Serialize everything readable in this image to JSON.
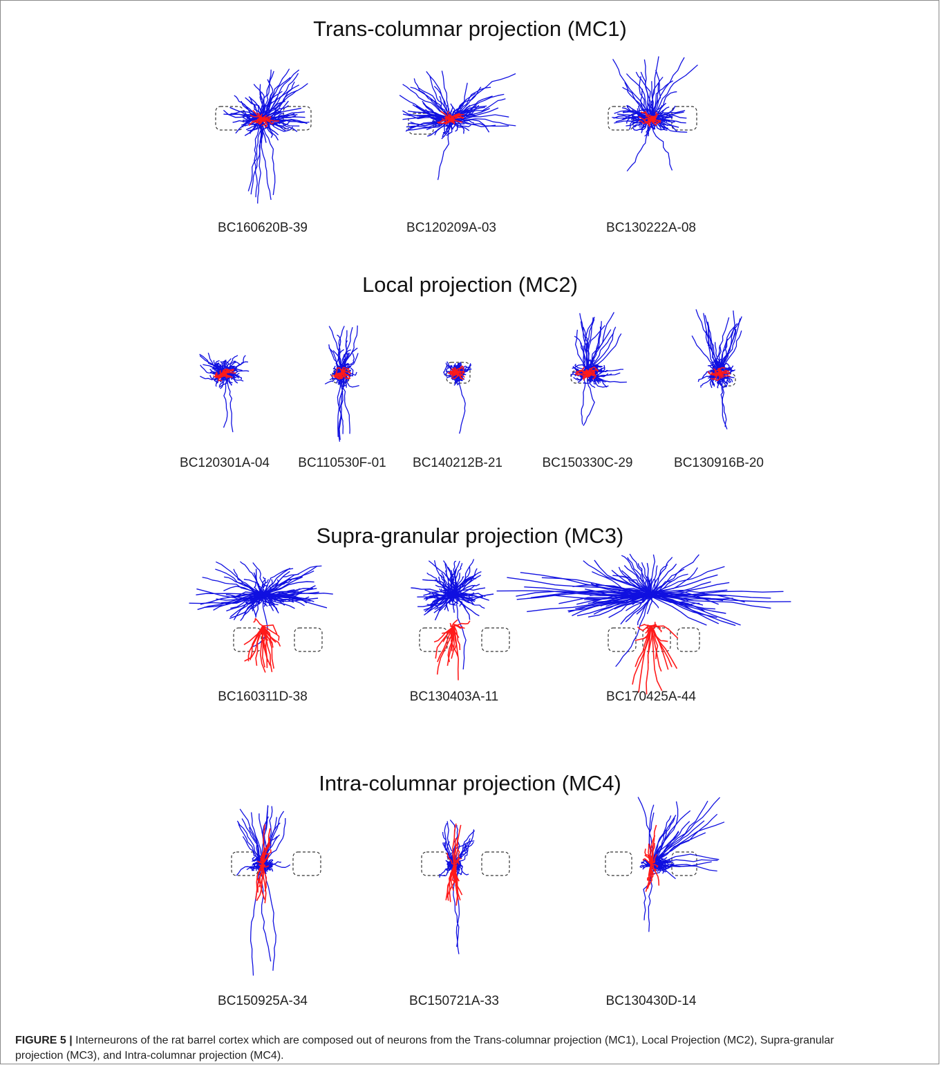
{
  "sections": [
    {
      "title": "Trans-columnar projection (MC1)",
      "neurons": [
        "BC160620B-39",
        "BC120209A-03",
        "BC130222A-08"
      ]
    },
    {
      "title": "Local projection (MC2)",
      "neurons": [
        "BC120301A-04",
        "BC110530F-01",
        "BC140212B-21",
        "BC150330C-29",
        "BC130916B-20"
      ]
    },
    {
      "title": "Supra-granular projection (MC3)",
      "neurons": [
        "BC160311D-38",
        "BC130403A-11",
        "BC170425A-44"
      ]
    },
    {
      "title": "Intra-columnar projection (MC4)",
      "neurons": [
        "BC150925A-34",
        "BC150721A-33",
        "BC130430D-14"
      ]
    }
  ],
  "caption": {
    "label": "FIGURE 5 |",
    "text": "Interneurons of the rat barrel cortex which are composed out of neurons from the Trans-columnar projection (MC1), Local Projection (MC2), Supra-granular projection (MC3), and Intra-columnar projection (MC4)."
  }
}
